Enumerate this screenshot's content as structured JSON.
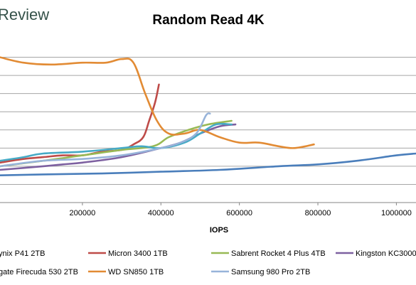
{
  "brand": {
    "name": "Review"
  },
  "colors": {
    "grid": "#a6a6a6",
    "axis": "#868686",
    "background": "#ffffff",
    "brand": "#35524a"
  },
  "chart_data": {
    "type": "line",
    "title": "Random Read 4K",
    "xlabel": "IOPS",
    "ylabel": "",
    "xlim": [
      -10000,
      1050000
    ],
    "ylim": [
      0,
      9
    ],
    "x_ticks": [
      200000,
      400000,
      600000,
      800000,
      1000000
    ],
    "x_tick_labels": [
      "200000",
      "400000",
      "600000",
      "800000",
      "1000000"
    ],
    "y_gridlines": [
      1,
      2,
      3,
      4,
      5,
      6,
      7,
      8
    ],
    "grid": true,
    "legend_position": "bottom",
    "series": [
      {
        "name": "ynix P41 2TB",
        "color": "#4a7ebb",
        "points": [
          [
            -10000,
            1.5
          ],
          [
            100000,
            1.55
          ],
          [
            250000,
            1.6
          ],
          [
            400000,
            1.7
          ],
          [
            550000,
            1.8
          ],
          [
            700000,
            2.0
          ],
          [
            800000,
            2.1
          ],
          [
            900000,
            2.3
          ],
          [
            1000000,
            2.6
          ],
          [
            1050000,
            2.7
          ]
        ]
      },
      {
        "name": "Micron 3400 1TB",
        "color": "#be4b48",
        "points": [
          [
            -10000,
            2.2
          ],
          [
            50000,
            2.4
          ],
          [
            100000,
            2.5
          ],
          [
            150000,
            2.6
          ],
          [
            200000,
            2.6
          ],
          [
            250000,
            2.8
          ],
          [
            300000,
            2.9
          ],
          [
            330000,
            3.2
          ],
          [
            355000,
            3.6
          ],
          [
            370000,
            4.5
          ],
          [
            385000,
            5.5
          ],
          [
            395000,
            6.5
          ]
        ]
      },
      {
        "name": "Sabrent Rocket 4 Plus 4TB",
        "color": "#98b954",
        "points": [
          [
            -10000,
            2.0
          ],
          [
            100000,
            2.3
          ],
          [
            200000,
            2.6
          ],
          [
            300000,
            2.9
          ],
          [
            380000,
            3.1
          ],
          [
            420000,
            3.6
          ],
          [
            470000,
            4.0
          ],
          [
            520000,
            4.3
          ],
          [
            580000,
            4.5
          ]
        ]
      },
      {
        "name": "Kingston KC3000",
        "color": "#7d60a0",
        "points": [
          [
            -10000,
            1.8
          ],
          [
            100000,
            2.0
          ],
          [
            150000,
            2.1
          ],
          [
            200000,
            2.2
          ],
          [
            300000,
            2.5
          ],
          [
            400000,
            3.0
          ],
          [
            450000,
            3.3
          ],
          [
            500000,
            3.8
          ],
          [
            550000,
            4.2
          ],
          [
            590000,
            4.3
          ]
        ]
      },
      {
        "name": "gate Firecuda 530 2TB",
        "color": "#46aac5",
        "points": [
          [
            -10000,
            2.3
          ],
          [
            50000,
            2.5
          ],
          [
            100000,
            2.7
          ],
          [
            200000,
            2.8
          ],
          [
            300000,
            3.0
          ],
          [
            350000,
            3.1
          ],
          [
            400000,
            3.0
          ],
          [
            460000,
            3.3
          ],
          [
            500000,
            3.8
          ],
          [
            540000,
            4.3
          ],
          [
            580000,
            4.3
          ]
        ]
      },
      {
        "name": "WD SN850 1TB",
        "color": "#e28b34",
        "points": [
          [
            -10000,
            8.0
          ],
          [
            50000,
            7.7
          ],
          [
            120000,
            7.6
          ],
          [
            200000,
            7.7
          ],
          [
            260000,
            7.7
          ],
          [
            300000,
            7.9
          ],
          [
            330000,
            7.7
          ],
          [
            360000,
            6.0
          ],
          [
            390000,
            4.5
          ],
          [
            420000,
            3.8
          ],
          [
            460000,
            3.8
          ],
          [
            500000,
            4.0
          ],
          [
            550000,
            3.6
          ],
          [
            600000,
            3.3
          ],
          [
            650000,
            3.3
          ],
          [
            700000,
            3.1
          ],
          [
            740000,
            3.0
          ],
          [
            790000,
            3.2
          ]
        ]
      },
      {
        "name": "Samsung 980 Pro 2TB",
        "color": "#97b3d9",
        "points": [
          [
            -10000,
            2.0
          ],
          [
            100000,
            2.3
          ],
          [
            200000,
            2.4
          ],
          [
            300000,
            2.6
          ],
          [
            400000,
            3.0
          ],
          [
            450000,
            3.3
          ],
          [
            490000,
            3.8
          ],
          [
            515000,
            4.8
          ],
          [
            525000,
            4.9
          ]
        ]
      }
    ],
    "legend": [
      {
        "label": "ynix P41 2TB",
        "color": "#4a7ebb"
      },
      {
        "label": "Micron 3400 1TB",
        "color": "#be4b48"
      },
      {
        "label": "Sabrent Rocket 4 Plus 4TB",
        "color": "#98b954"
      },
      {
        "label": "Kingston KC3000",
        "color": "#7d60a0"
      },
      {
        "label": "gate Firecuda 530 2TB",
        "color": "#46aac5"
      },
      {
        "label": "WD SN850 1TB",
        "color": "#e28b34"
      },
      {
        "label": "Samsung 980 Pro 2TB",
        "color": "#97b3d9"
      }
    ]
  }
}
